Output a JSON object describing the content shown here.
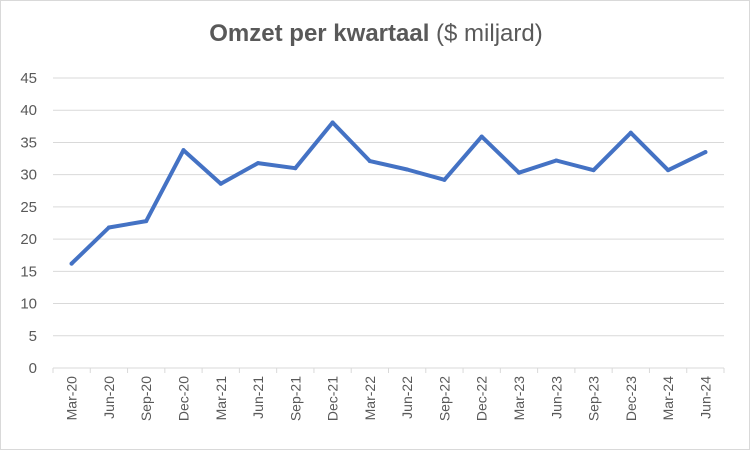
{
  "chart_data": {
    "type": "line",
    "title": "Omzet per kwartaal",
    "title_unit": "($ miljard)",
    "xlabel": "",
    "ylabel": "",
    "ylim": [
      0,
      45
    ],
    "yticks": [
      0,
      5,
      10,
      15,
      20,
      25,
      30,
      35,
      40,
      45
    ],
    "grid": true,
    "legend": "none",
    "categories": [
      "Mar-20",
      "Jun-20",
      "Sep-20",
      "Dec-20",
      "Mar-21",
      "Jun-21",
      "Sep-21",
      "Dec-21",
      "Mar-22",
      "Jun-22",
      "Sep-22",
      "Dec-22",
      "Mar-23",
      "Jun-23",
      "Sep-23",
      "Dec-23",
      "Mar-24",
      "Jun-24"
    ],
    "series": [
      {
        "color": "#4472c4",
        "values": [
          16.2,
          21.8,
          22.8,
          33.8,
          28.6,
          31.8,
          31.0,
          38.1,
          32.1,
          30.8,
          29.2,
          35.9,
          30.3,
          32.2,
          30.7,
          36.5,
          30.7,
          33.5
        ]
      }
    ]
  }
}
